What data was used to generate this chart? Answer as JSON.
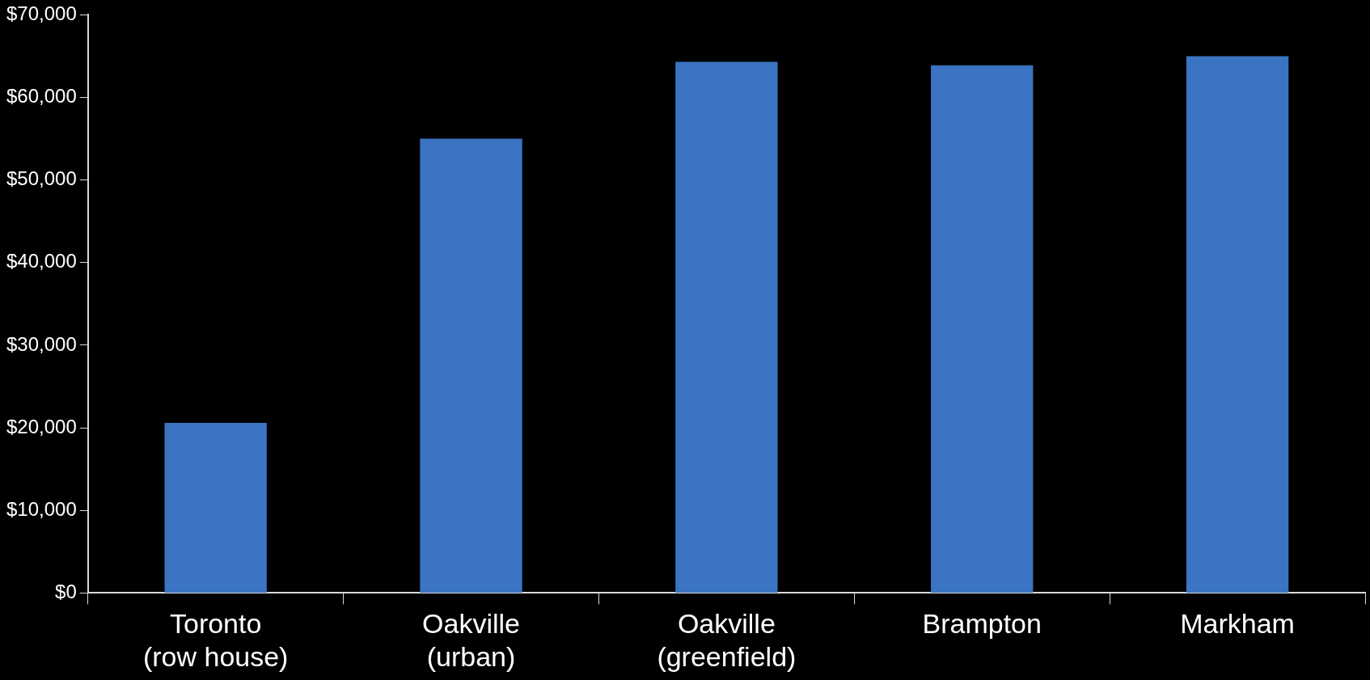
{
  "chart_data": {
    "type": "bar",
    "categories": [
      "Toronto (row house)",
      "Oakville (urban)",
      "Oakville (greenfield)",
      "Brampton",
      "Markham"
    ],
    "values": [
      20600,
      55000,
      64300,
      63900,
      65000
    ],
    "color": "#3a74c2",
    "ylim": [
      0,
      70000
    ],
    "yticks": [
      {
        "value": 0,
        "label": "$0"
      },
      {
        "value": 10000,
        "label": "$10,000"
      },
      {
        "value": 20000,
        "label": "$20,000"
      },
      {
        "value": 30000,
        "label": "$30,000"
      },
      {
        "value": 40000,
        "label": "$40,000"
      },
      {
        "value": 50000,
        "label": "$50,000"
      },
      {
        "value": 60000,
        "label": "$60,000"
      },
      {
        "value": 70000,
        "label": "$70,000"
      }
    ],
    "grid": false,
    "legend": false
  }
}
